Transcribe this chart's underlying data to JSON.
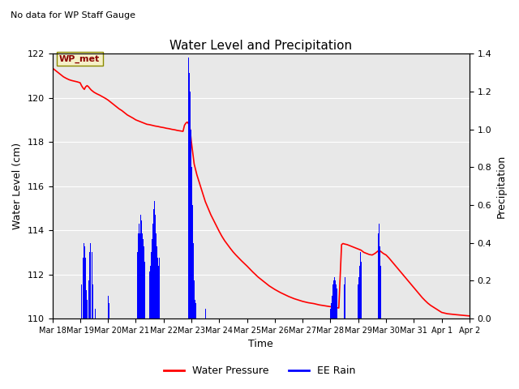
{
  "title": "Water Level and Precipitation",
  "subtitle": "No data for WP Staff Gauge",
  "ylabel_left": "Water Level (cm)",
  "ylabel_right": "Precipitation",
  "xlabel": "Time",
  "legend_label1": "Water Pressure",
  "legend_label2": "EE Rain",
  "wp_met_label": "WP_met",
  "ylim_left": [
    110,
    122
  ],
  "ylim_right": [
    0.0,
    1.4
  ],
  "yticks_left": [
    110,
    112,
    114,
    116,
    118,
    120,
    122
  ],
  "yticks_right": [
    0.0,
    0.2,
    0.4,
    0.6,
    0.8,
    1.0,
    1.2,
    1.4
  ],
  "bg_color": "#e8e8e8",
  "water_pressure_color": "red",
  "rain_color": "blue",
  "xlim": [
    18,
    33
  ],
  "xtick_positions": [
    18,
    19,
    20,
    21,
    22,
    23,
    24,
    25,
    26,
    27,
    28,
    29,
    30,
    31,
    32,
    33
  ],
  "xtick_labels": [
    "Mar 18",
    "Mar 19",
    "Mar 20",
    "Mar 21",
    "Mar 22",
    "Mar 23",
    "Mar 24",
    "Mar 25",
    "Mar 26",
    "Mar 27",
    "Mar 28",
    "Mar 29",
    "Mar 30",
    "Mar 31",
    "Apr 1",
    "Apr 2"
  ],
  "water_pressure_points": [
    [
      18.0,
      121.35
    ],
    [
      18.05,
      121.3
    ],
    [
      18.1,
      121.25
    ],
    [
      18.15,
      121.2
    ],
    [
      18.2,
      121.15
    ],
    [
      18.3,
      121.05
    ],
    [
      18.4,
      120.95
    ],
    [
      18.5,
      120.88
    ],
    [
      18.6,
      120.82
    ],
    [
      18.7,
      120.78
    ],
    [
      18.8,
      120.75
    ],
    [
      18.9,
      120.72
    ],
    [
      19.0,
      120.68
    ],
    [
      19.05,
      120.55
    ],
    [
      19.1,
      120.45
    ],
    [
      19.15,
      120.38
    ],
    [
      19.2,
      120.5
    ],
    [
      19.25,
      120.55
    ],
    [
      19.3,
      120.5
    ],
    [
      19.35,
      120.42
    ],
    [
      19.4,
      120.35
    ],
    [
      19.5,
      120.25
    ],
    [
      19.6,
      120.18
    ],
    [
      19.7,
      120.12
    ],
    [
      19.8,
      120.05
    ],
    [
      19.9,
      119.98
    ],
    [
      20.0,
      119.9
    ],
    [
      20.1,
      119.8
    ],
    [
      20.2,
      119.7
    ],
    [
      20.3,
      119.6
    ],
    [
      20.4,
      119.5
    ],
    [
      20.5,
      119.42
    ],
    [
      20.6,
      119.32
    ],
    [
      20.7,
      119.22
    ],
    [
      20.8,
      119.15
    ],
    [
      20.9,
      119.08
    ],
    [
      21.0,
      119.0
    ],
    [
      21.1,
      118.95
    ],
    [
      21.2,
      118.9
    ],
    [
      21.3,
      118.85
    ],
    [
      21.4,
      118.8
    ],
    [
      21.5,
      118.78
    ],
    [
      21.6,
      118.75
    ],
    [
      21.7,
      118.72
    ],
    [
      21.8,
      118.7
    ],
    [
      21.9,
      118.67
    ],
    [
      22.0,
      118.65
    ],
    [
      22.1,
      118.62
    ],
    [
      22.2,
      118.6
    ],
    [
      22.3,
      118.57
    ],
    [
      22.4,
      118.55
    ],
    [
      22.5,
      118.52
    ],
    [
      22.6,
      118.5
    ],
    [
      22.7,
      118.48
    ],
    [
      22.75,
      118.75
    ],
    [
      22.8,
      118.85
    ],
    [
      22.85,
      118.9
    ],
    [
      22.9,
      118.82
    ],
    [
      22.95,
      118.6
    ],
    [
      23.0,
      118.0
    ],
    [
      23.05,
      117.5
    ],
    [
      23.1,
      117.0
    ],
    [
      23.2,
      116.5
    ],
    [
      23.3,
      116.1
    ],
    [
      23.4,
      115.7
    ],
    [
      23.5,
      115.3
    ],
    [
      23.6,
      115.0
    ],
    [
      23.7,
      114.7
    ],
    [
      23.8,
      114.45
    ],
    [
      23.9,
      114.2
    ],
    [
      24.0,
      113.95
    ],
    [
      24.1,
      113.72
    ],
    [
      24.2,
      113.52
    ],
    [
      24.3,
      113.35
    ],
    [
      24.4,
      113.18
    ],
    [
      24.5,
      113.02
    ],
    [
      24.6,
      112.88
    ],
    [
      24.7,
      112.75
    ],
    [
      24.8,
      112.62
    ],
    [
      24.9,
      112.5
    ],
    [
      25.0,
      112.38
    ],
    [
      25.1,
      112.25
    ],
    [
      25.2,
      112.12
    ],
    [
      25.3,
      112.0
    ],
    [
      25.4,
      111.88
    ],
    [
      25.5,
      111.78
    ],
    [
      25.6,
      111.68
    ],
    [
      25.7,
      111.58
    ],
    [
      25.8,
      111.48
    ],
    [
      25.9,
      111.4
    ],
    [
      26.0,
      111.32
    ],
    [
      26.1,
      111.25
    ],
    [
      26.2,
      111.18
    ],
    [
      26.3,
      111.12
    ],
    [
      26.4,
      111.06
    ],
    [
      26.5,
      111.0
    ],
    [
      26.6,
      110.95
    ],
    [
      26.7,
      110.9
    ],
    [
      26.8,
      110.86
    ],
    [
      26.9,
      110.82
    ],
    [
      27.0,
      110.78
    ],
    [
      27.1,
      110.75
    ],
    [
      27.2,
      110.72
    ],
    [
      27.3,
      110.7
    ],
    [
      27.4,
      110.68
    ],
    [
      27.5,
      110.65
    ],
    [
      27.6,
      110.62
    ],
    [
      27.7,
      110.6
    ],
    [
      27.8,
      110.58
    ],
    [
      27.9,
      110.56
    ],
    [
      28.0,
      110.54
    ],
    [
      28.1,
      110.52
    ],
    [
      28.2,
      110.5
    ],
    [
      28.3,
      110.48
    ],
    [
      28.4,
      113.35
    ],
    [
      28.45,
      113.4
    ],
    [
      28.5,
      113.38
    ],
    [
      28.6,
      113.35
    ],
    [
      28.7,
      113.3
    ],
    [
      28.8,
      113.25
    ],
    [
      28.9,
      113.2
    ],
    [
      29.0,
      113.15
    ],
    [
      29.1,
      113.1
    ],
    [
      29.15,
      113.05
    ],
    [
      29.2,
      113.0
    ],
    [
      29.3,
      112.95
    ],
    [
      29.4,
      112.9
    ],
    [
      29.5,
      112.88
    ],
    [
      29.6,
      112.95
    ],
    [
      29.7,
      113.05
    ],
    [
      29.75,
      113.1
    ],
    [
      29.8,
      113.05
    ],
    [
      29.85,
      113.0
    ],
    [
      29.9,
      112.95
    ],
    [
      30.0,
      112.88
    ],
    [
      30.1,
      112.75
    ],
    [
      30.2,
      112.6
    ],
    [
      30.3,
      112.45
    ],
    [
      30.4,
      112.3
    ],
    [
      30.5,
      112.15
    ],
    [
      30.6,
      112.0
    ],
    [
      30.7,
      111.85
    ],
    [
      30.8,
      111.7
    ],
    [
      30.9,
      111.55
    ],
    [
      31.0,
      111.4
    ],
    [
      31.1,
      111.25
    ],
    [
      31.2,
      111.1
    ],
    [
      31.3,
      110.95
    ],
    [
      31.4,
      110.82
    ],
    [
      31.5,
      110.7
    ],
    [
      31.6,
      110.6
    ],
    [
      31.7,
      110.52
    ],
    [
      31.8,
      110.44
    ],
    [
      31.9,
      110.36
    ],
    [
      32.0,
      110.28
    ],
    [
      32.2,
      110.22
    ],
    [
      32.5,
      110.18
    ],
    [
      33.0,
      110.12
    ]
  ],
  "rain_bars": [
    [
      19.05,
      0.18
    ],
    [
      19.1,
      0.32
    ],
    [
      19.13,
      0.4
    ],
    [
      19.16,
      0.38
    ],
    [
      19.19,
      0.32
    ],
    [
      19.22,
      0.15
    ],
    [
      19.25,
      0.1
    ],
    [
      19.3,
      0.2
    ],
    [
      19.35,
      0.35
    ],
    [
      19.38,
      0.4
    ],
    [
      19.42,
      0.35
    ],
    [
      19.45,
      0.18
    ],
    [
      19.5,
      0.08
    ],
    [
      19.55,
      0.05
    ],
    [
      20.0,
      0.12
    ],
    [
      20.04,
      0.08
    ],
    [
      21.05,
      0.35
    ],
    [
      21.08,
      0.45
    ],
    [
      21.11,
      0.5
    ],
    [
      21.14,
      0.45
    ],
    [
      21.17,
      0.55
    ],
    [
      21.2,
      0.52
    ],
    [
      21.23,
      0.45
    ],
    [
      21.26,
      0.42
    ],
    [
      21.29,
      0.38
    ],
    [
      21.32,
      0.3
    ],
    [
      21.5,
      0.25
    ],
    [
      21.53,
      0.28
    ],
    [
      21.56,
      0.35
    ],
    [
      21.59,
      0.42
    ],
    [
      21.62,
      0.5
    ],
    [
      21.65,
      0.58
    ],
    [
      21.68,
      0.62
    ],
    [
      21.71,
      0.55
    ],
    [
      21.74,
      0.45
    ],
    [
      21.77,
      0.38
    ],
    [
      21.8,
      0.32
    ],
    [
      21.83,
      0.28
    ],
    [
      21.86,
      0.32
    ],
    [
      21.89,
      0.42
    ],
    [
      21.92,
      0.4
    ],
    [
      21.95,
      0.35
    ],
    [
      21.98,
      0.3
    ],
    [
      22.01,
      0.28
    ],
    [
      22.9,
      1.38
    ],
    [
      22.93,
      1.3
    ],
    [
      22.96,
      1.2
    ],
    [
      22.99,
      1.0
    ],
    [
      23.02,
      0.8
    ],
    [
      23.05,
      0.6
    ],
    [
      23.08,
      0.4
    ],
    [
      23.11,
      0.2
    ],
    [
      23.14,
      0.1
    ],
    [
      23.17,
      0.08
    ],
    [
      23.5,
      0.05
    ],
    [
      28.0,
      0.05
    ],
    [
      28.03,
      0.08
    ],
    [
      28.06,
      0.12
    ],
    [
      28.09,
      0.18
    ],
    [
      28.12,
      0.2
    ],
    [
      28.15,
      0.22
    ],
    [
      28.18,
      0.2
    ],
    [
      28.21,
      0.18
    ],
    [
      28.24,
      0.16
    ],
    [
      28.5,
      0.18
    ],
    [
      28.53,
      0.22
    ],
    [
      29.0,
      0.18
    ],
    [
      29.03,
      0.22
    ],
    [
      29.06,
      0.28
    ],
    [
      29.09,
      0.35
    ],
    [
      29.12,
      0.3
    ],
    [
      29.15,
      0.28
    ],
    [
      29.18,
      0.25
    ],
    [
      29.21,
      0.22
    ],
    [
      29.5,
      0.42
    ],
    [
      29.53,
      0.38
    ],
    [
      29.56,
      0.28
    ],
    [
      29.59,
      0.22
    ],
    [
      29.62,
      0.15
    ],
    [
      29.72,
      0.45
    ],
    [
      29.75,
      0.5
    ],
    [
      29.78,
      0.38
    ],
    [
      29.81,
      0.28
    ]
  ],
  "bar_width": 0.025
}
